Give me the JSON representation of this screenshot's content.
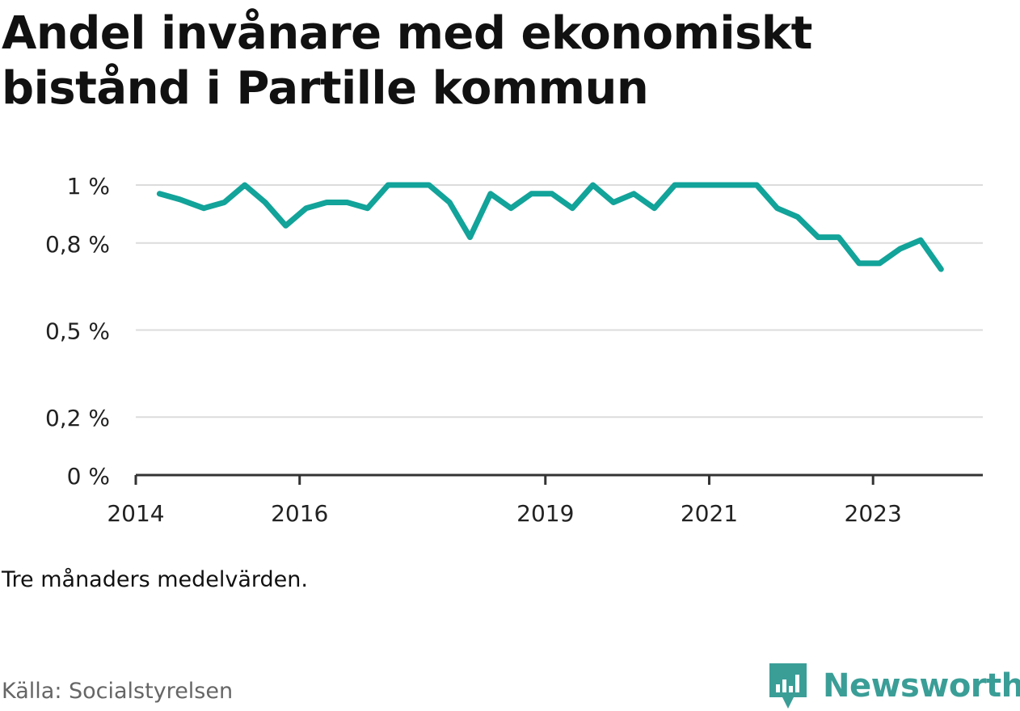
{
  "title": "Andel invånare med ekonomiskt bistånd i Partille kommun",
  "subtitle": "Tre månaders medelvärden.",
  "source": "Källa: Socialstyrelsen",
  "brand": {
    "name": "Newsworthy",
    "icon": "newsworthy-logo-icon",
    "color": "#3a9e97"
  },
  "chart_data": {
    "type": "line",
    "title": "Andel invånare med ekonomiskt bistånd i Partille kommun",
    "xlabel": "",
    "ylabel": "",
    "ylim": [
      0,
      1.0
    ],
    "xlim": [
      2014.0,
      2024.34
    ],
    "y_ticks": [
      0,
      0.2,
      0.5,
      0.8,
      1.0
    ],
    "y_tick_labels": [
      "0 %",
      "0,2 %",
      "0,5 %",
      "0,8 %",
      "1 %"
    ],
    "x_ticks": [
      2014,
      2016,
      2019,
      2021,
      2023
    ],
    "x_tick_labels": [
      "2014",
      "2016",
      "2019",
      "2021",
      "2023"
    ],
    "grid": true,
    "line_color": "#12a39a",
    "series": [
      {
        "x": [
          2014.29,
          2014.54,
          2014.83,
          2015.08,
          2015.33,
          2015.58,
          2015.83,
          2016.08,
          2016.33,
          2016.58,
          2016.83,
          2017.08,
          2017.33,
          2017.58,
          2017.83,
          2018.08,
          2018.33,
          2018.58,
          2018.83,
          2019.08,
          2019.33,
          2019.58,
          2019.83,
          2020.08,
          2020.33,
          2020.58,
          2020.83,
          2021.08,
          2021.33,
          2021.58,
          2021.83,
          2022.08,
          2022.33,
          2022.58,
          2022.83,
          2023.08,
          2023.33,
          2023.58,
          2023.83
        ],
        "values": [
          0.97,
          0.95,
          0.92,
          0.94,
          1.0,
          0.94,
          0.86,
          0.92,
          0.94,
          0.94,
          0.92,
          1.0,
          1.0,
          1.0,
          0.94,
          0.82,
          0.97,
          0.92,
          0.97,
          0.97,
          0.92,
          1.0,
          0.94,
          0.97,
          0.92,
          1.0,
          1.0,
          1.0,
          1.0,
          1.0,
          0.92,
          0.89,
          0.82,
          0.82,
          0.73,
          0.73,
          0.78,
          0.81,
          0.71
        ]
      }
    ]
  }
}
